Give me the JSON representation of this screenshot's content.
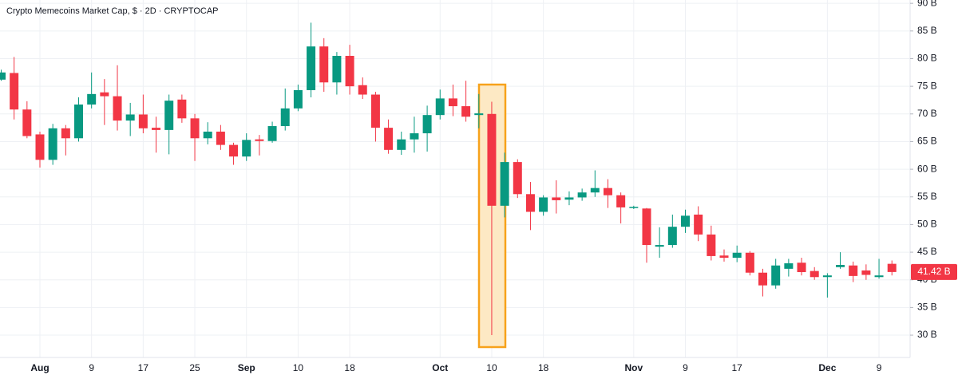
{
  "chart_data": {
    "type": "candlestick",
    "title": "Crypto Memecoins Market Cap, $ · 2D · CRYPTOCAP",
    "categories": [
      null,
      null,
      null,
      "Aug",
      null,
      null,
      null,
      "9",
      null,
      null,
      null,
      "17",
      null,
      null,
      null,
      "25",
      null,
      null,
      null,
      "Sep",
      null,
      null,
      null,
      "10",
      null,
      null,
      null,
      "18",
      null,
      null,
      null,
      null,
      null,
      null,
      "Oct",
      null,
      null,
      null,
      "10",
      null,
      null,
      null,
      "18",
      null,
      null,
      null,
      null,
      null,
      null,
      "Nov",
      null,
      null,
      null,
      "9",
      null,
      null,
      null,
      "17",
      null,
      null,
      null,
      null,
      null,
      null,
      "Dec",
      null,
      null,
      null,
      "9",
      null
    ],
    "series": {
      "open": [
        76.2,
        77.4,
        70.8,
        66.3,
        61.7,
        67.4,
        65.6,
        71.7,
        73.9,
        73.2,
        68.8,
        69.9,
        67.5,
        67.1,
        72.6,
        69.2,
        65.6,
        66.8,
        64.4,
        62.3,
        65.4,
        65.1,
        67.8,
        71,
        74.3,
        82.2,
        75.7,
        80.5,
        75.2,
        73.5,
        67.5,
        63.5,
        65.4,
        66.5,
        69.8,
        72.8,
        71.4,
        69.8,
        70,
        53.4,
        61.3,
        55.5,
        52.3,
        54.9,
        54.5,
        54.9,
        55.8,
        56.6,
        55.3,
        53,
        52.9,
        46,
        46.3,
        49.6,
        51.8,
        48.2,
        44.4,
        44,
        44.9,
        41.3,
        39,
        42,
        43.1,
        41.6,
        40.5,
        42.3,
        42.6,
        41.7,
        40.5,
        42.9
      ],
      "high": [
        78,
        80.3,
        72.3,
        66.8,
        68.2,
        68,
        73,
        77.5,
        76.3,
        78.8,
        72,
        73.5,
        69.5,
        73.5,
        73.5,
        70,
        68.5,
        68,
        64.8,
        66.5,
        66.2,
        68.6,
        74.6,
        75.3,
        86.5,
        83.7,
        81.2,
        82.5,
        76.6,
        74,
        69,
        66.8,
        69.5,
        71.5,
        74.4,
        75.3,
        76,
        73.6,
        72.2,
        63,
        61.8,
        57.7,
        55.3,
        58,
        56,
        56.5,
        59.8,
        58.2,
        55.8,
        53.4,
        53,
        49.5,
        51.8,
        52.7,
        53.3,
        49.8,
        45.5,
        46.2,
        45.2,
        42,
        43.8,
        43.8,
        44,
        42.3,
        41.2,
        45,
        43.3,
        42.8,
        43.8,
        43.5
      ],
      "low": [
        76,
        69,
        65.6,
        60.3,
        60.8,
        62.5,
        65,
        71,
        68,
        67,
        66,
        66.5,
        63,
        62.7,
        68.4,
        61.5,
        64.5,
        63.5,
        60.8,
        61.5,
        62.5,
        64.8,
        67,
        70.5,
        73,
        74,
        73.5,
        73.5,
        72.7,
        65,
        62.8,
        62.6,
        63,
        63.2,
        69,
        69.6,
        68.6,
        67.4,
        30,
        51.3,
        54.8,
        49,
        51.6,
        52,
        53.5,
        54.3,
        55,
        53,
        50.2,
        52.8,
        43.1,
        44,
        45.8,
        48.5,
        47,
        43.5,
        43.3,
        43.2,
        40.8,
        37,
        38.4,
        40.6,
        40.8,
        40,
        36.8,
        42,
        39.6,
        40,
        40.2,
        40.8
      ],
      "close": [
        77.5,
        70.8,
        66,
        61.7,
        67.4,
        65.6,
        71.7,
        73.6,
        73.2,
        68.8,
        69.9,
        67.4,
        67.1,
        72.4,
        69.2,
        65.6,
        66.8,
        64.4,
        62.3,
        65.3,
        65.1,
        67.8,
        71,
        74.3,
        82.2,
        75.7,
        80.5,
        75,
        73.5,
        67.5,
        63.5,
        65.4,
        66.5,
        69.8,
        72.8,
        71.4,
        69.5,
        70.1,
        53.4,
        61.3,
        55.5,
        52.3,
        54.9,
        54.4,
        54.9,
        55.8,
        56.6,
        55.3,
        53.1,
        53.2,
        46.3,
        46.3,
        49.6,
        51.6,
        48.2,
        44.3,
        44,
        44.9,
        41.3,
        39,
        42.6,
        43,
        41.4,
        40.5,
        40.8,
        42.7,
        40.7,
        40.9,
        40.8,
        41.42
      ]
    },
    "up_color": "#089981",
    "down_color": "#f23645",
    "last_value_label": "41.42 B",
    "ylim": [
      26.4,
      90.6
    ],
    "yticks": [
      {
        "value": 30,
        "label": "30 B"
      },
      {
        "value": 35,
        "label": "35 B"
      },
      {
        "value": 40,
        "label": "40 B"
      },
      {
        "value": 45,
        "label": "45 B"
      },
      {
        "value": 50,
        "label": "50 B"
      },
      {
        "value": 55,
        "label": "55 B"
      },
      {
        "value": 60,
        "label": "60 B"
      },
      {
        "value": 65,
        "label": "65 B"
      },
      {
        "value": 70,
        "label": "70 B"
      },
      {
        "value": 75,
        "label": "75 B"
      },
      {
        "value": 80,
        "label": "80 B"
      },
      {
        "value": 85,
        "label": "85 B"
      },
      {
        "value": 90,
        "label": "90 B"
      }
    ],
    "grid": true
  }
}
